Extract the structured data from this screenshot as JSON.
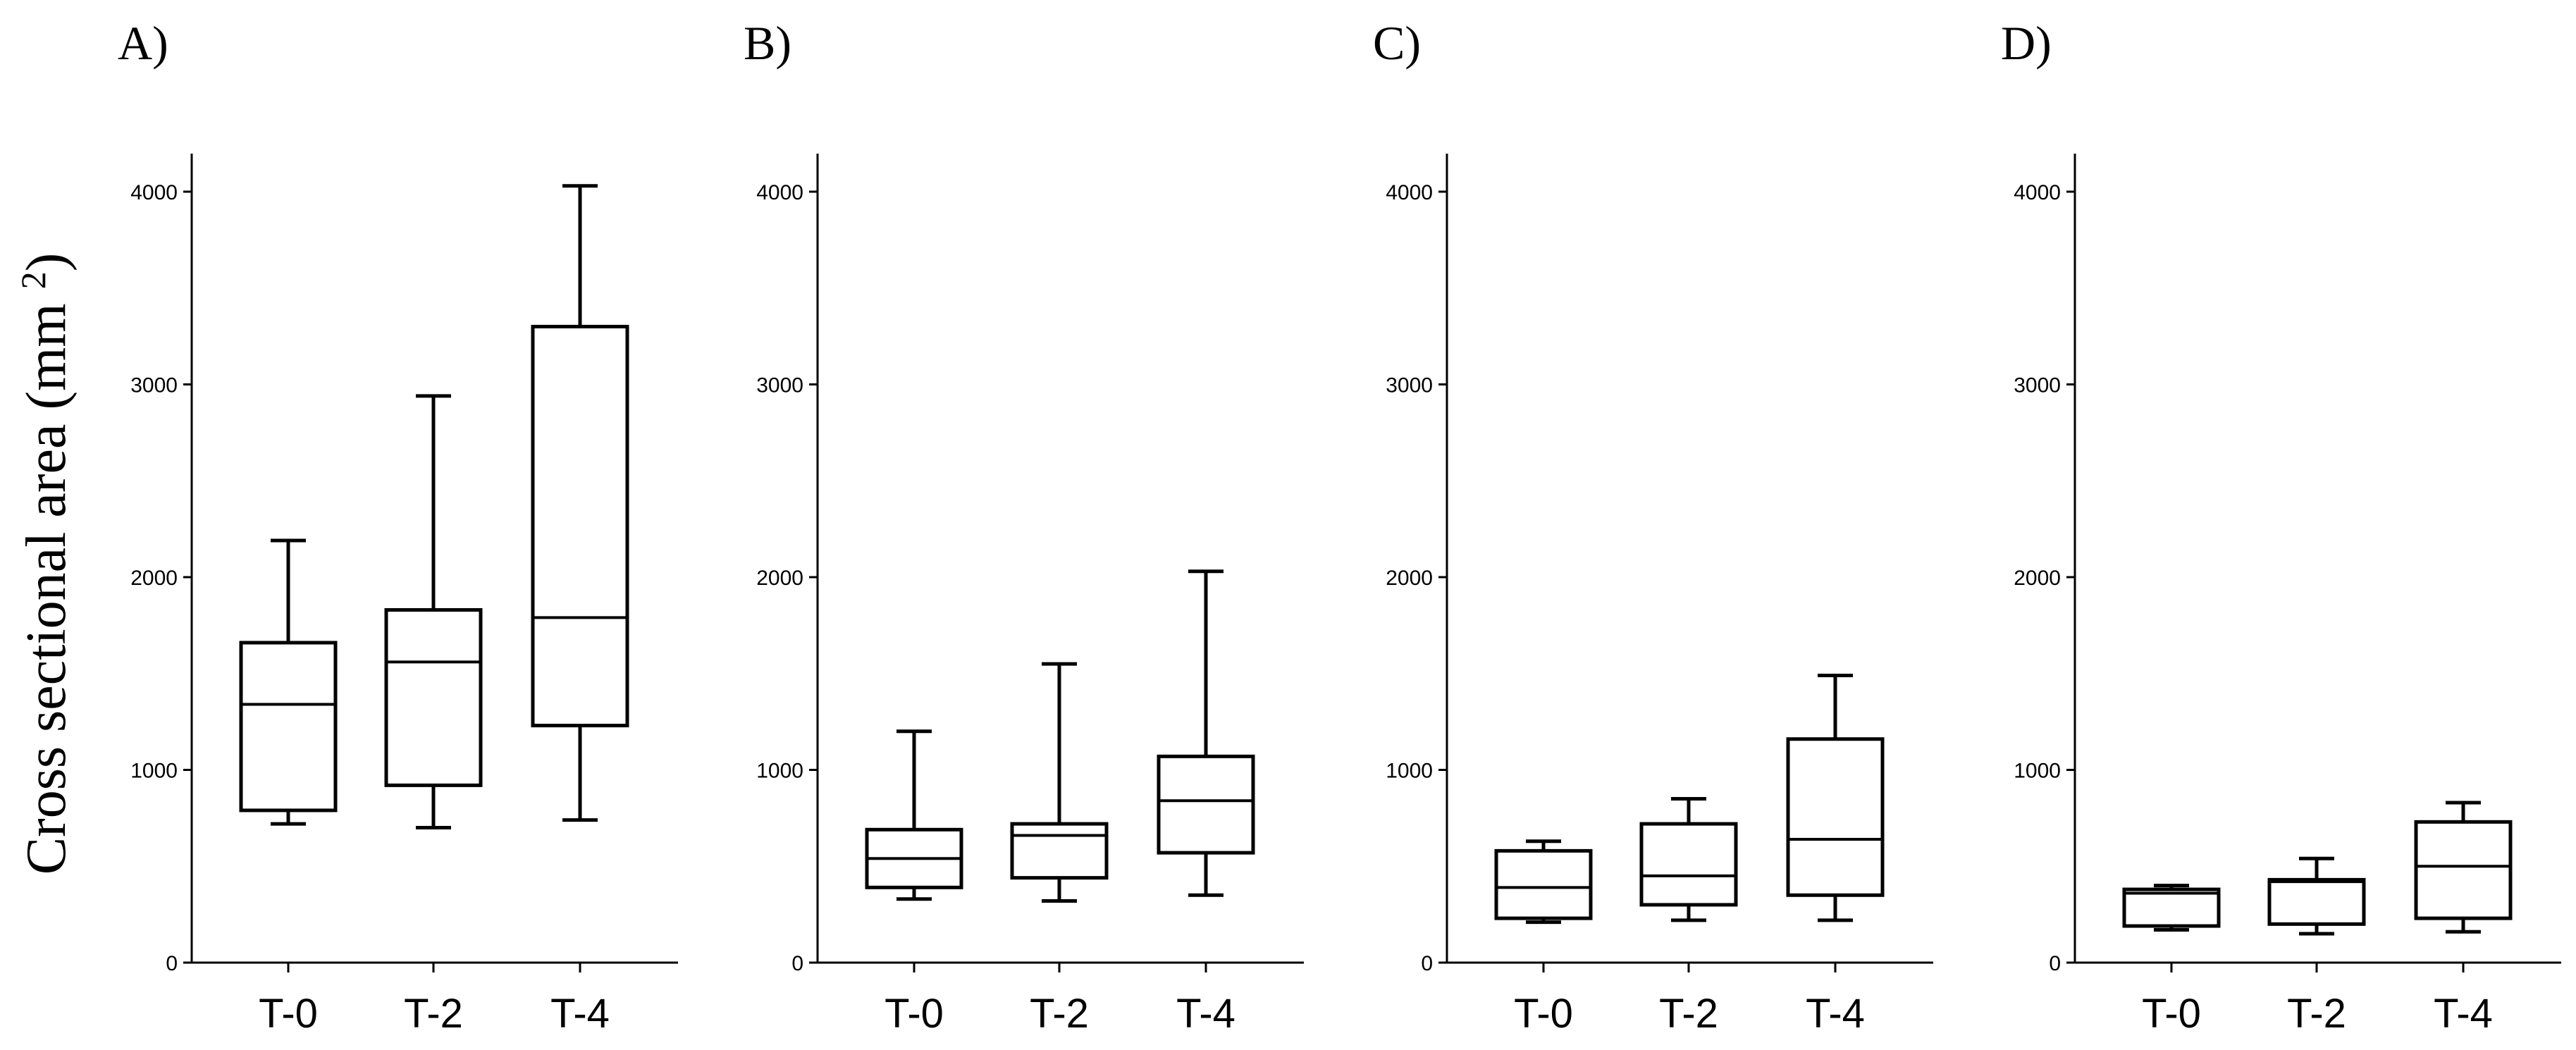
{
  "chart_data": {
    "type": "box",
    "ylabel": "Cross sectional area (mm ",
    "ylabel_sup": "2",
    "ylabel_close": ")",
    "ylim": [
      0,
      4200
    ],
    "yticks": [
      0,
      1000,
      2000,
      3000,
      4000
    ],
    "categories": [
      "T-0",
      "T-2",
      "T-4"
    ],
    "panels": [
      {
        "label": "A)",
        "boxes": [
          {
            "category": "T-0",
            "min": 720,
            "q1": 790,
            "median": 1340,
            "q3": 1660,
            "max": 2190
          },
          {
            "category": "T-2",
            "min": 700,
            "q1": 920,
            "median": 1560,
            "q3": 1830,
            "max": 2940
          },
          {
            "category": "T-4",
            "min": 740,
            "q1": 1230,
            "median": 1790,
            "q3": 3300,
            "max": 4030
          }
        ]
      },
      {
        "label": "B)",
        "boxes": [
          {
            "category": "T-0",
            "min": 330,
            "q1": 390,
            "median": 540,
            "q3": 690,
            "max": 1200
          },
          {
            "category": "T-2",
            "min": 320,
            "q1": 440,
            "median": 660,
            "q3": 720,
            "max": 1550
          },
          {
            "category": "T-4",
            "min": 350,
            "q1": 570,
            "median": 840,
            "q3": 1070,
            "max": 2030
          }
        ]
      },
      {
        "label": "C)",
        "boxes": [
          {
            "category": "T-0",
            "min": 210,
            "q1": 230,
            "median": 390,
            "q3": 580,
            "max": 630
          },
          {
            "category": "T-2",
            "min": 220,
            "q1": 300,
            "median": 450,
            "q3": 720,
            "max": 850
          },
          {
            "category": "T-4",
            "min": 220,
            "q1": 350,
            "median": 640,
            "q3": 1160,
            "max": 1490
          }
        ]
      },
      {
        "label": "D)",
        "boxes": [
          {
            "category": "T-0",
            "min": 170,
            "q1": 190,
            "median": 360,
            "q3": 380,
            "max": 400
          },
          {
            "category": "T-2",
            "min": 150,
            "q1": 200,
            "median": 420,
            "q3": 430,
            "max": 540
          },
          {
            "category": "T-4",
            "min": 160,
            "q1": 230,
            "median": 500,
            "q3": 730,
            "max": 830
          }
        ]
      }
    ]
  }
}
